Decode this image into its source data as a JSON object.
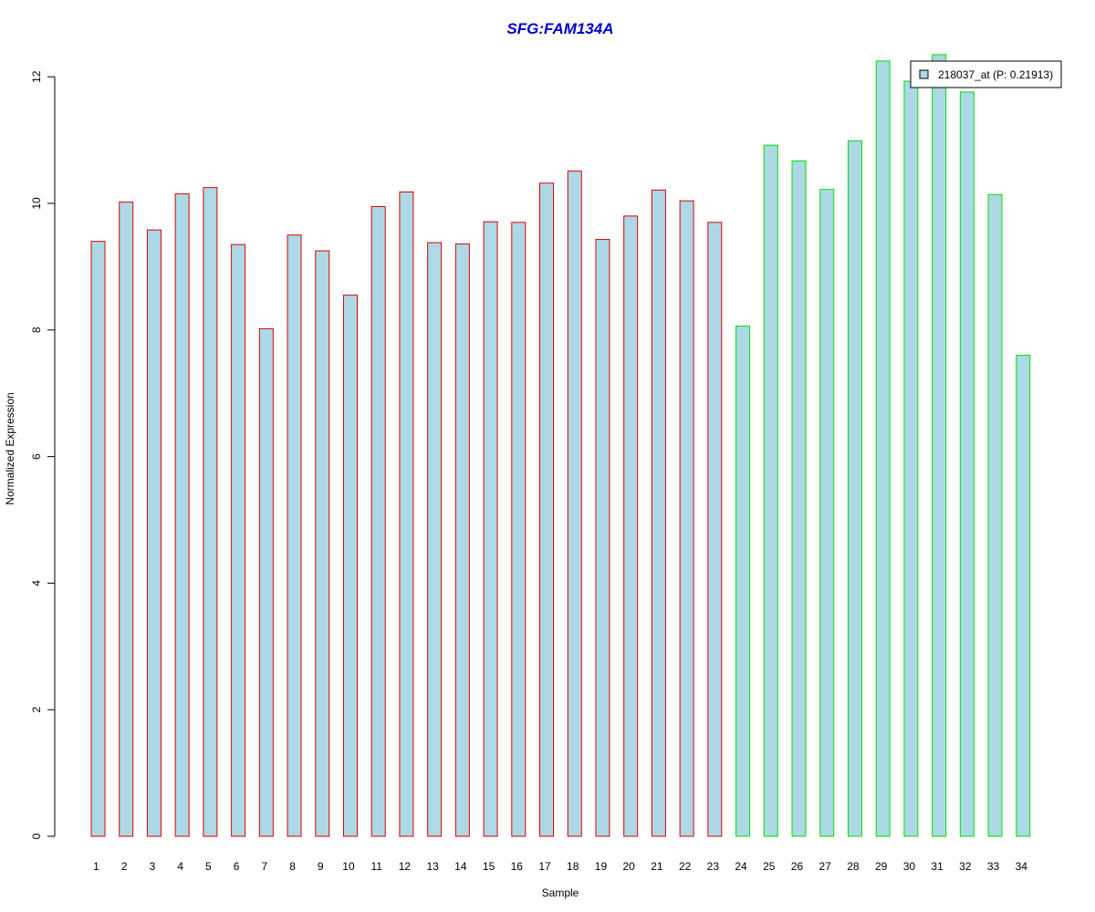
{
  "chart_data": {
    "type": "bar",
    "title": "SFG:FAM134A",
    "xlabel": "Sample",
    "ylabel": "Normalized Expression",
    "ylim": [
      0,
      12
    ],
    "yticks": [
      0,
      2,
      4,
      6,
      8,
      10,
      12
    ],
    "grid": false,
    "legend_position": "top-right",
    "categories": [
      "1",
      "2",
      "3",
      "4",
      "5",
      "6",
      "7",
      "8",
      "9",
      "10",
      "11",
      "12",
      "13",
      "14",
      "15",
      "16",
      "17",
      "18",
      "19",
      "20",
      "21",
      "22",
      "23",
      "24",
      "25",
      "26",
      "27",
      "28",
      "29",
      "30",
      "31",
      "32",
      "33",
      "34"
    ],
    "series": [
      {
        "name": "218037_at (P: 0.21913)",
        "values": [
          9.4,
          10.02,
          9.58,
          10.15,
          10.25,
          9.35,
          8.02,
          9.5,
          9.25,
          8.55,
          9.95,
          10.18,
          9.38,
          9.36,
          9.71,
          9.7,
          10.32,
          10.51,
          9.43,
          9.8,
          10.21,
          10.04,
          9.7,
          8.06,
          10.92,
          10.67,
          10.22,
          10.99,
          12.25,
          11.93,
          12.35,
          11.76,
          10.14,
          7.6
        ],
        "fill": "#add8e6",
        "border_colors": [
          "#e00000",
          "#e00000",
          "#e00000",
          "#e00000",
          "#e00000",
          "#e00000",
          "#e00000",
          "#e00000",
          "#e00000",
          "#e00000",
          "#e00000",
          "#e00000",
          "#e00000",
          "#e00000",
          "#e00000",
          "#e00000",
          "#e00000",
          "#e00000",
          "#e00000",
          "#e00000",
          "#e00000",
          "#e00000",
          "#e00000",
          "#00e000",
          "#00e000",
          "#00e000",
          "#00e000",
          "#00e000",
          "#00e000",
          "#00e000",
          "#00e000",
          "#00e000",
          "#00e000",
          "#00e000"
        ]
      }
    ]
  },
  "colors": {
    "title": "#0000cc",
    "bar_fill": "#add8e6",
    "group1_border": "#e00000",
    "group2_border": "#00e000"
  }
}
